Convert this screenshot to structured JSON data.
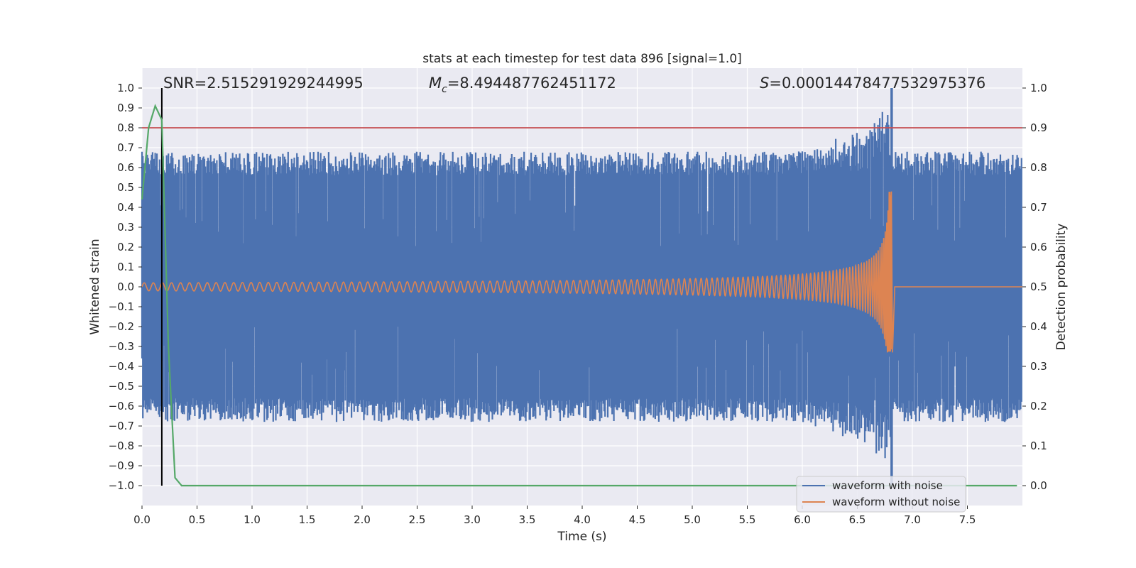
{
  "chart_data": {
    "type": "line",
    "title": "stats at each timestep for test data 896 [signal=1.0]",
    "xlabel": "Time (s)",
    "ylabel": "Whitened strain",
    "ylabel_right": "Detection probability",
    "xlim": [
      0.0,
      8.0
    ],
    "ylim": [
      -1.1,
      1.1
    ],
    "ylim_right": [
      -0.05,
      1.05
    ],
    "xticks": [
      "0.0",
      "0.5",
      "1.0",
      "1.5",
      "2.0",
      "2.5",
      "3.0",
      "3.5",
      "4.0",
      "4.5",
      "5.0",
      "5.5",
      "6.0",
      "6.5",
      "7.0",
      "7.5"
    ],
    "yticks": [
      "1.0",
      "0.9",
      "0.8",
      "0.7",
      "0.6",
      "0.5",
      "0.4",
      "0.3",
      "0.2",
      "0.1",
      "0.0",
      "−0.1",
      "−0.2",
      "−0.3",
      "−0.4",
      "−0.5",
      "−0.6",
      "−0.7",
      "−0.8",
      "−0.9",
      "−1.0"
    ],
    "yticks_right": [
      "1.0",
      "0.9",
      "0.8",
      "0.7",
      "0.6",
      "0.5",
      "0.4",
      "0.3",
      "0.2",
      "0.1",
      "0.0"
    ],
    "annotations": {
      "snr": "SNR=2.515291929244995",
      "mc_symbol": "M",
      "mc_sub": "c",
      "mc_value": "=8.494487762451172",
      "s_symbol": "S",
      "s_value": "=0.00014478477532975376"
    },
    "threshold": 0.8,
    "marker_time": 0.18,
    "merger_time": 6.81,
    "series": [
      {
        "name": "waveform with noise",
        "color": "#4c72b0",
        "noise_envelope": [
          -0.7,
          0.7
        ],
        "peak_max": 1.0,
        "peak_min": -1.0
      },
      {
        "name": "waveform without noise",
        "color": "#dd8452",
        "start_amplitude": 0.02,
        "peak_max": 0.48,
        "peak_min": -0.33
      },
      {
        "name": "detection probability",
        "color": "#55a868",
        "x": [
          0.0,
          0.06,
          0.12,
          0.18,
          0.24,
          0.3,
          0.36,
          7.95
        ],
        "y": [
          0.72,
          0.9,
          0.955,
          0.92,
          0.35,
          0.02,
          0.0,
          0.0
        ]
      }
    ],
    "threshold_color": "#c44e52",
    "marker_color": "#000000",
    "legend": {
      "position": "bottom-right",
      "entries": [
        "waveform with noise",
        "waveform without noise"
      ]
    }
  }
}
